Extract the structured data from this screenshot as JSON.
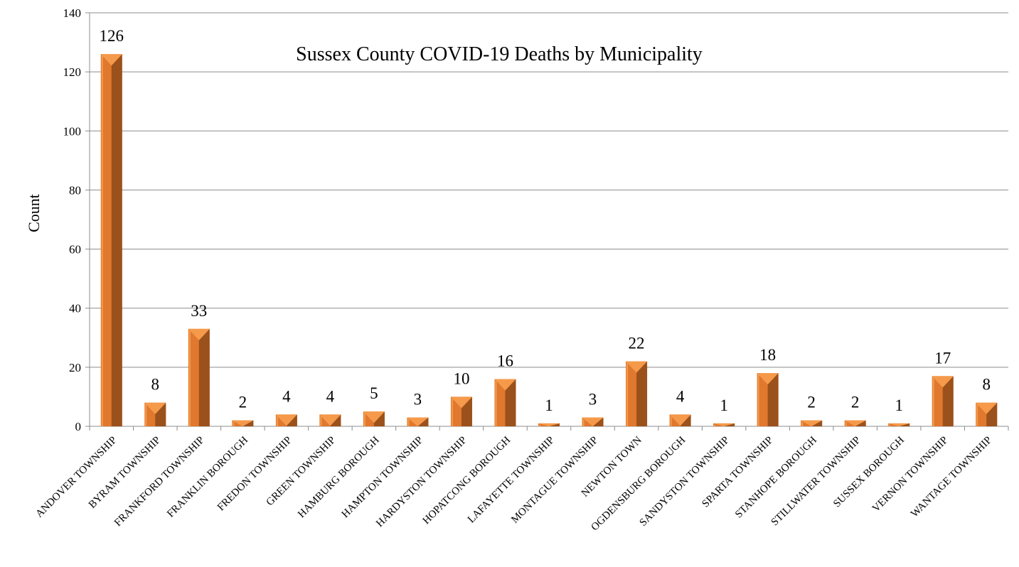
{
  "chart_data": {
    "type": "bar",
    "title": "Sussex County COVID-19 Deaths by Municipality",
    "xlabel": "",
    "ylabel": "Count",
    "ylim": [
      0,
      140
    ],
    "yticks": [
      0,
      20,
      40,
      60,
      80,
      100,
      120,
      140
    ],
    "grid": true,
    "legend": "none",
    "categories": [
      "ANDOVER TOWNSHIP",
      "BYRAM TOWNSHIP",
      "FRANKFORD TOWNSHIP",
      "FRANKLIN BOROUGH",
      "FREDON TOWNSHIP",
      "GREEN TOWNSHIP",
      "HAMBURG BOROUGH",
      "HAMPTON TOWNSHIP",
      "HARDYSTON TOWNSHIP",
      "HOPATCONG BOROUGH",
      "LAFAYETTE TOWNSHIP",
      "MONTAGUE TOWNSHIP",
      "NEWTON TOWN",
      "OGDENSBURG BOROUGH",
      "SANDYSTON TOWNSHIP",
      "SPARTA TOWNSHIP",
      "STANHOPE BOROUGH",
      "STILLWATER TOWNSHIP",
      "SUSSEX BOROUGH",
      "VERNON TOWNSHIP",
      "WANTAGE TOWNSHIP"
    ],
    "values": [
      126,
      8,
      33,
      2,
      4,
      4,
      5,
      3,
      10,
      16,
      1,
      3,
      22,
      4,
      1,
      18,
      2,
      2,
      1,
      17,
      8
    ],
    "colors": {
      "bar_front": "#E0782E",
      "bar_side": "#8E4A17",
      "bar_top": "#F59A4A"
    }
  }
}
